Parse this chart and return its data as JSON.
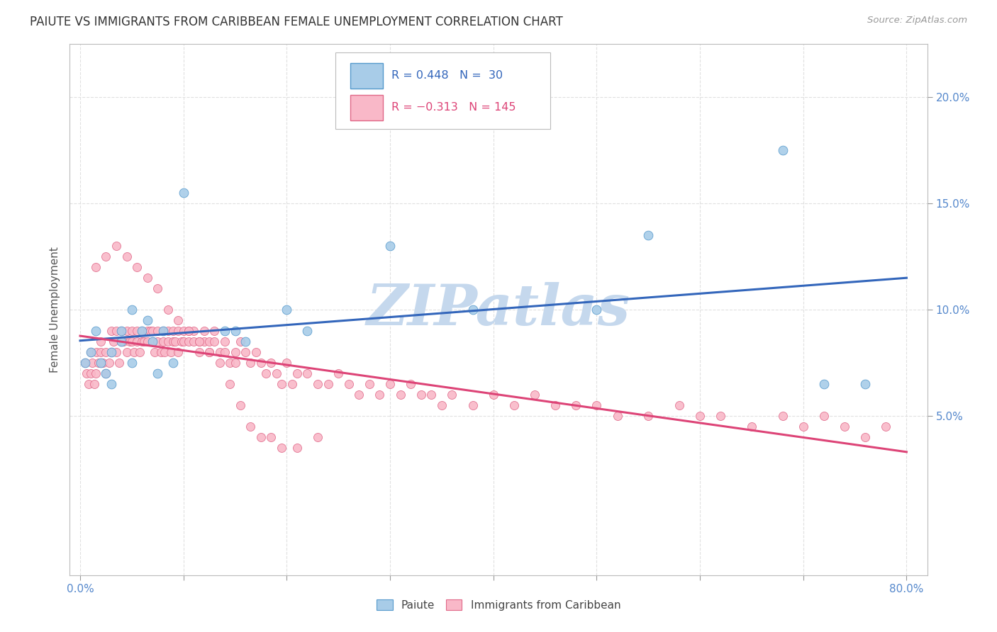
{
  "title": "PAIUTE VS IMMIGRANTS FROM CARIBBEAN FEMALE UNEMPLOYMENT CORRELATION CHART",
  "source": "Source: ZipAtlas.com",
  "ylabel": "Female Unemployment",
  "yticks": [
    0.05,
    0.1,
    0.15,
    0.2
  ],
  "ytick_labels": [
    "5.0%",
    "10.0%",
    "15.0%",
    "20.0%"
  ],
  "xticks": [
    0.0,
    0.1,
    0.2,
    0.3,
    0.4,
    0.5,
    0.6,
    0.7,
    0.8
  ],
  "xlim": [
    -0.01,
    0.82
  ],
  "ylim": [
    -0.025,
    0.225
  ],
  "paiute_color": "#a8cce8",
  "caribbean_color": "#f9b8c8",
  "paiute_edge_color": "#5599cc",
  "caribbean_edge_color": "#e06888",
  "paiute_line_color": "#3366bb",
  "caribbean_line_color": "#dd4477",
  "watermark": "ZIPatlas",
  "watermark_color": "#c5d8ed",
  "background_color": "#ffffff",
  "grid_color": "#e0e0e0",
  "paiute_x": [
    0.005,
    0.01,
    0.015,
    0.02,
    0.025,
    0.03,
    0.03,
    0.04,
    0.04,
    0.05,
    0.05,
    0.06,
    0.065,
    0.07,
    0.075,
    0.08,
    0.09,
    0.1,
    0.14,
    0.15,
    0.16,
    0.2,
    0.22,
    0.3,
    0.38,
    0.5,
    0.55,
    0.68,
    0.72,
    0.76
  ],
  "paiute_y": [
    0.075,
    0.08,
    0.09,
    0.075,
    0.07,
    0.08,
    0.065,
    0.085,
    0.09,
    0.1,
    0.075,
    0.09,
    0.095,
    0.085,
    0.07,
    0.09,
    0.075,
    0.155,
    0.09,
    0.09,
    0.085,
    0.1,
    0.09,
    0.13,
    0.1,
    0.1,
    0.135,
    0.175,
    0.065,
    0.065
  ],
  "caribbean_x": [
    0.005,
    0.006,
    0.008,
    0.01,
    0.01,
    0.012,
    0.014,
    0.015,
    0.016,
    0.018,
    0.02,
    0.02,
    0.022,
    0.025,
    0.025,
    0.028,
    0.03,
    0.03,
    0.032,
    0.035,
    0.035,
    0.038,
    0.04,
    0.04,
    0.042,
    0.045,
    0.045,
    0.048,
    0.05,
    0.05,
    0.052,
    0.055,
    0.055,
    0.058,
    0.06,
    0.06,
    0.062,
    0.065,
    0.065,
    0.068,
    0.07,
    0.07,
    0.072,
    0.075,
    0.075,
    0.078,
    0.08,
    0.08,
    0.082,
    0.085,
    0.085,
    0.088,
    0.09,
    0.09,
    0.092,
    0.095,
    0.095,
    0.098,
    0.1,
    0.1,
    0.105,
    0.105,
    0.11,
    0.11,
    0.115,
    0.115,
    0.12,
    0.12,
    0.125,
    0.125,
    0.13,
    0.13,
    0.135,
    0.14,
    0.14,
    0.145,
    0.15,
    0.15,
    0.155,
    0.16,
    0.165,
    0.17,
    0.175,
    0.18,
    0.185,
    0.19,
    0.195,
    0.2,
    0.205,
    0.21,
    0.22,
    0.23,
    0.24,
    0.25,
    0.26,
    0.27,
    0.28,
    0.29,
    0.3,
    0.31,
    0.32,
    0.33,
    0.34,
    0.35,
    0.36,
    0.38,
    0.4,
    0.42,
    0.44,
    0.46,
    0.48,
    0.5,
    0.52,
    0.55,
    0.58,
    0.6,
    0.62,
    0.65,
    0.68,
    0.7,
    0.72,
    0.74,
    0.76,
    0.78,
    0.015,
    0.025,
    0.035,
    0.045,
    0.055,
    0.065,
    0.075,
    0.085,
    0.095,
    0.105,
    0.115,
    0.125,
    0.135,
    0.145,
    0.155,
    0.165,
    0.175,
    0.185,
    0.195,
    0.21,
    0.23
  ],
  "caribbean_y": [
    0.075,
    0.07,
    0.065,
    0.08,
    0.07,
    0.075,
    0.065,
    0.07,
    0.08,
    0.075,
    0.08,
    0.085,
    0.075,
    0.08,
    0.07,
    0.075,
    0.09,
    0.08,
    0.085,
    0.09,
    0.08,
    0.075,
    0.085,
    0.09,
    0.085,
    0.08,
    0.09,
    0.085,
    0.085,
    0.09,
    0.08,
    0.085,
    0.09,
    0.08,
    0.09,
    0.085,
    0.085,
    0.09,
    0.085,
    0.09,
    0.09,
    0.085,
    0.08,
    0.09,
    0.085,
    0.08,
    0.085,
    0.09,
    0.08,
    0.09,
    0.085,
    0.08,
    0.085,
    0.09,
    0.085,
    0.08,
    0.09,
    0.085,
    0.085,
    0.09,
    0.085,
    0.09,
    0.085,
    0.09,
    0.085,
    0.08,
    0.085,
    0.09,
    0.085,
    0.08,
    0.09,
    0.085,
    0.08,
    0.085,
    0.08,
    0.075,
    0.08,
    0.075,
    0.085,
    0.08,
    0.075,
    0.08,
    0.075,
    0.07,
    0.075,
    0.07,
    0.065,
    0.075,
    0.065,
    0.07,
    0.07,
    0.065,
    0.065,
    0.07,
    0.065,
    0.06,
    0.065,
    0.06,
    0.065,
    0.06,
    0.065,
    0.06,
    0.06,
    0.055,
    0.06,
    0.055,
    0.06,
    0.055,
    0.06,
    0.055,
    0.055,
    0.055,
    0.05,
    0.05,
    0.055,
    0.05,
    0.05,
    0.045,
    0.05,
    0.045,
    0.05,
    0.045,
    0.04,
    0.045,
    0.12,
    0.125,
    0.13,
    0.125,
    0.12,
    0.115,
    0.11,
    0.1,
    0.095,
    0.09,
    0.085,
    0.08,
    0.075,
    0.065,
    0.055,
    0.045,
    0.04,
    0.04,
    0.035,
    0.035,
    0.04
  ]
}
